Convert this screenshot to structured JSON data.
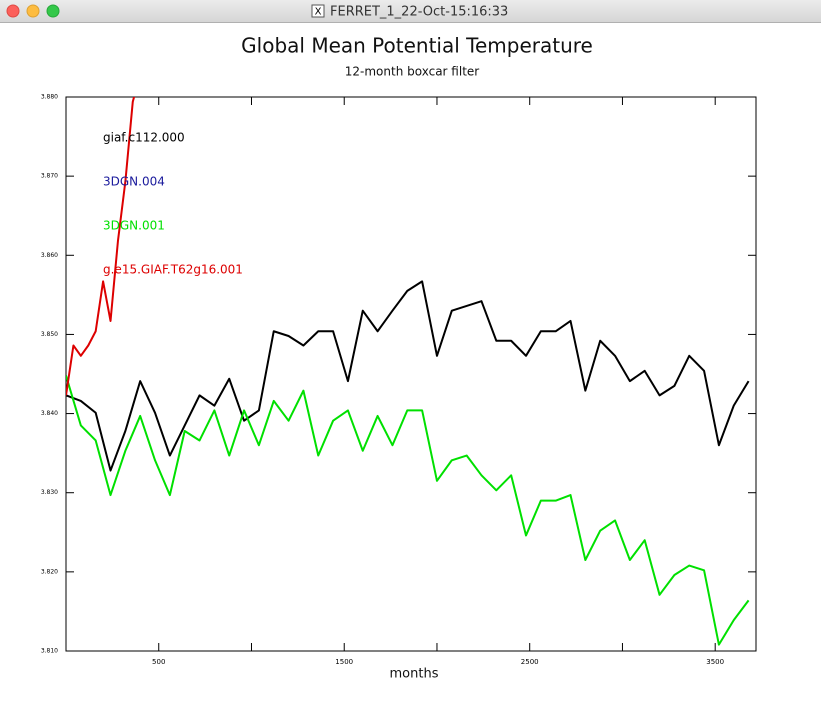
{
  "window": {
    "title": "FERRET_1_22-Oct-15:16:33"
  },
  "chart_data": {
    "type": "line",
    "title": "Global Mean Potential Temperature",
    "subtitle": "12-month boxcar filter",
    "x_label": "months",
    "xlim": [
      0,
      3720
    ],
    "xticks": [
      500,
      1500,
      2500,
      3500
    ],
    "xticks_unlabeled": [
      1000,
      2000,
      3000
    ],
    "ylim": [
      3.81,
      3.88
    ],
    "yticks": [
      {
        "value": 3.81,
        "label": "3.810"
      },
      {
        "value": 3.82,
        "label": "3.820"
      },
      {
        "value": 3.83,
        "label": "3.830"
      },
      {
        "value": 3.84,
        "label": "3.840"
      },
      {
        "value": 3.85,
        "label": "3.850"
      },
      {
        "value": 3.86,
        "label": "3.860"
      },
      {
        "value": 3.87,
        "label": "3.870"
      },
      {
        "value": 3.88,
        "label": "3.880"
      }
    ],
    "series": [
      {
        "name": "giaf.c112.000",
        "color": "#000000",
        "x": [
          0,
          80,
          160,
          240,
          320,
          400,
          480,
          560,
          640,
          720,
          800,
          880,
          960,
          1040,
          1120,
          1200,
          1280,
          1360,
          1440,
          1520,
          1600,
          1680,
          1760,
          1840,
          1920,
          2000,
          2080,
          2160,
          2240,
          2320,
          2400,
          2480,
          2560,
          2640,
          2720,
          2800,
          2880,
          2960,
          3040,
          3120,
          3200,
          3280,
          3360,
          3440,
          3520,
          3600,
          3680
        ],
        "values": [
          3.8423,
          3.8416,
          3.8401,
          3.8328,
          3.8378,
          3.8441,
          3.8401,
          3.8347,
          3.8385,
          3.8423,
          3.841,
          3.8444,
          3.8391,
          3.8404,
          3.8504,
          3.8498,
          3.8486,
          3.8504,
          3.8504,
          3.8441,
          3.853,
          3.8504,
          3.853,
          3.8555,
          3.8567,
          3.8473,
          3.853,
          3.8536,
          3.8542,
          3.8492,
          3.8492,
          3.8473,
          3.8504,
          3.8504,
          3.8517,
          3.8429,
          3.8492,
          3.8473,
          3.8441,
          3.8454,
          3.8423,
          3.8435,
          3.8473,
          3.8454,
          3.836,
          3.841,
          3.8441
        ]
      },
      {
        "name": "3DGN.004",
        "color": "#1a1a9c"
      },
      {
        "name": "3DGN.001",
        "color": "#00e000",
        "x": [
          0,
          80,
          160,
          240,
          320,
          400,
          480,
          560,
          640,
          720,
          800,
          880,
          960,
          1040,
          1120,
          1200,
          1280,
          1360,
          1440,
          1520,
          1600,
          1680,
          1760,
          1840,
          1920,
          2000,
          2080,
          2160,
          2240,
          2320,
          2400,
          2480,
          2560,
          2640,
          2720,
          2800,
          2880,
          2960,
          3040,
          3120,
          3200,
          3280,
          3360,
          3440,
          3520,
          3600,
          3680
        ],
        "values": [
          3.8448,
          3.8385,
          3.8366,
          3.8297,
          3.8353,
          3.8397,
          3.8341,
          3.8297,
          3.8378,
          3.8366,
          3.8404,
          3.8347,
          3.8404,
          3.836,
          3.8416,
          3.8391,
          3.8429,
          3.8347,
          3.8391,
          3.8404,
          3.8353,
          3.8397,
          3.836,
          3.8404,
          3.8404,
          3.8315,
          3.8341,
          3.8347,
          3.8322,
          3.8303,
          3.8322,
          3.8246,
          3.829,
          3.829,
          3.8297,
          3.8215,
          3.8252,
          3.8265,
          3.8215,
          3.824,
          3.8171,
          3.8196,
          3.8208,
          3.8202,
          3.8108,
          3.8139,
          3.8164
        ]
      },
      {
        "name": "g.e15.GIAF.T62g16.001",
        "color": "#dd0000",
        "x": [
          0,
          40,
          80,
          120,
          160,
          200,
          240,
          280,
          320,
          360,
          375
        ],
        "values": [
          3.8423,
          3.8486,
          3.8473,
          3.8486,
          3.8504,
          3.8567,
          3.8517,
          3.8618,
          3.8693,
          3.8794,
          3.8807
        ]
      }
    ]
  }
}
